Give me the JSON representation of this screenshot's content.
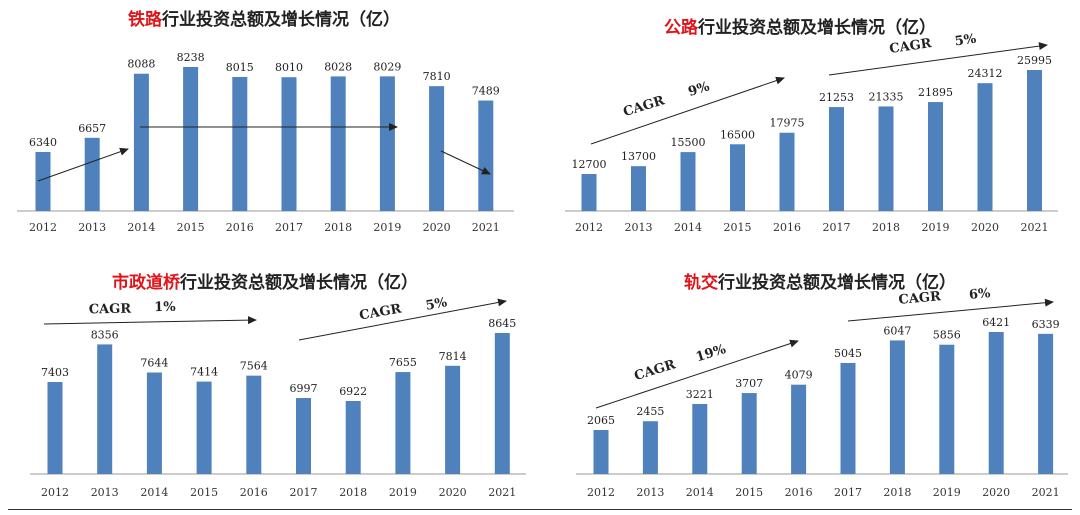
{
  "page": {
    "accent_color": "#e0141a",
    "bar_color": "#4f81bd"
  },
  "chart_data": [
    {
      "type": "bar",
      "title_highlight": "铁路",
      "title_rest": "行业投资总额及增长情况（亿）",
      "categories": [
        "2012",
        "2013",
        "2014",
        "2015",
        "2016",
        "2017",
        "2018",
        "2019",
        "2020",
        "2021"
      ],
      "values": [
        6340,
        6657,
        8088,
        8238,
        8015,
        8010,
        8028,
        8029,
        7810,
        7489
      ],
      "annotations": []
    },
    {
      "type": "bar",
      "title_highlight": "公路",
      "title_rest": "行业投资总额及增长情况（亿）",
      "categories": [
        "2012",
        "2013",
        "2014",
        "2015",
        "2016",
        "2017",
        "2018",
        "2019",
        "2020",
        "2021"
      ],
      "values": [
        12700,
        13700,
        15500,
        16500,
        17975,
        21253,
        21335,
        21895,
        24312,
        25995
      ],
      "annotations": [
        "CAGR",
        "9%",
        "CAGR",
        "5%"
      ]
    },
    {
      "type": "bar",
      "title_highlight": "市政道桥",
      "title_rest": "行业投资总额及增长情况（亿）",
      "categories": [
        "2012",
        "2013",
        "2014",
        "2015",
        "2016",
        "2017",
        "2018",
        "2019",
        "2020",
        "2021"
      ],
      "values": [
        7403,
        8356,
        7644,
        7414,
        7564,
        6997,
        6922,
        7655,
        7814,
        8645
      ],
      "annotations": [
        "CAGR",
        "1%",
        "CAGR",
        "5%"
      ]
    },
    {
      "type": "bar",
      "title_highlight": "轨交",
      "title_rest": "行业投资总额及增长情况（亿）",
      "categories": [
        "2012",
        "2013",
        "2014",
        "2015",
        "2016",
        "2017",
        "2018",
        "2019",
        "2020",
        "2021"
      ],
      "values": [
        2065,
        2455,
        3221,
        3707,
        4079,
        5045,
        6047,
        5856,
        6421,
        6339
      ],
      "annotations": [
        "CAGR",
        "19%",
        "CAGR",
        "6%"
      ]
    }
  ]
}
